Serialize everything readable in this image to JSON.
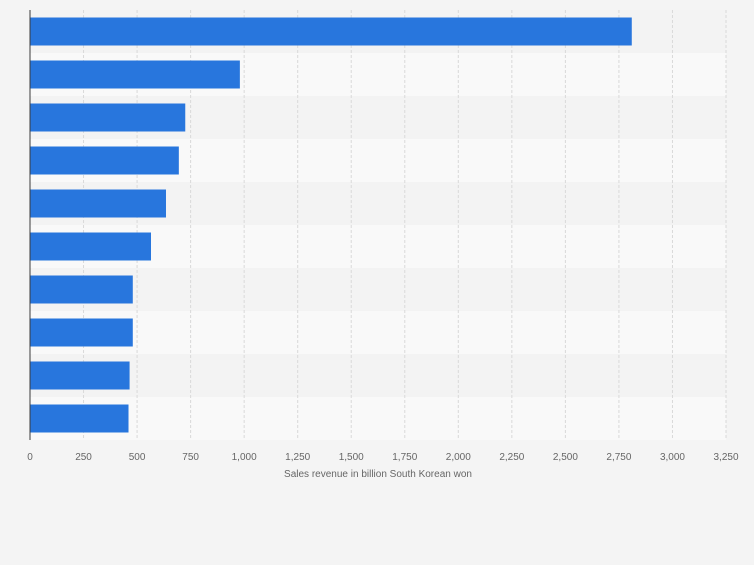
{
  "chart_data": {
    "type": "bar",
    "orientation": "horizontal",
    "title": "",
    "xlabel": "Sales revenue in billion South Korean won",
    "ylabel": "",
    "categories": [
      "",
      "",
      "",
      "",
      "",
      "",
      "",
      "",
      "",
      ""
    ],
    "values": [
      2810,
      980,
      725,
      695,
      635,
      565,
      480,
      480,
      465,
      460
    ],
    "xlim": [
      0,
      3250
    ],
    "xticks": [
      0,
      250,
      500,
      750,
      1000,
      1250,
      1500,
      1750,
      2000,
      2250,
      2500,
      2750,
      3000,
      3250
    ],
    "xtick_labels": [
      "0",
      "250",
      "500",
      "750",
      "1,000",
      "1,250",
      "1,500",
      "1,750",
      "2,000",
      "2,250",
      "2,500",
      "2,750",
      "3,000",
      "3,250"
    ],
    "grid": true,
    "legend": "none",
    "colors": {
      "bar": "#2876dd",
      "page_background": "#f4f4f4",
      "band_light": "#f9f9f9",
      "band_dark": "#f3f3f3",
      "grid": "#d9d9d9",
      "axis": "#3a3a3a",
      "tick_text": "#666666"
    }
  }
}
